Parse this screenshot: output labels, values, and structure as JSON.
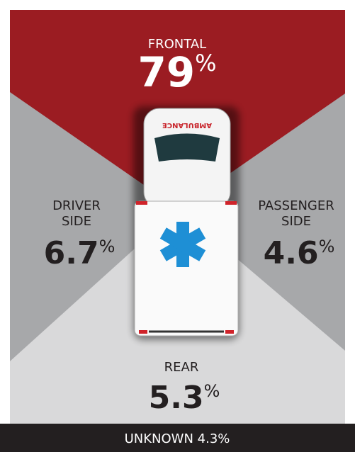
{
  "regions": [
    {
      "label": [
        "FRONTAL"
      ],
      "value": 79,
      "unit": "%"
    },
    {
      "label": [
        "DRIVER",
        "SIDE"
      ],
      "value": 6.7,
      "unit": "%"
    },
    {
      "label": [
        "PASSENGER",
        "SIDE"
      ],
      "value": 4.6,
      "unit": "%"
    },
    {
      "label": [
        "REAR"
      ],
      "value": 5.3,
      "unit": "%"
    }
  ],
  "footer": "UNKNOWN 4.3%"
}
